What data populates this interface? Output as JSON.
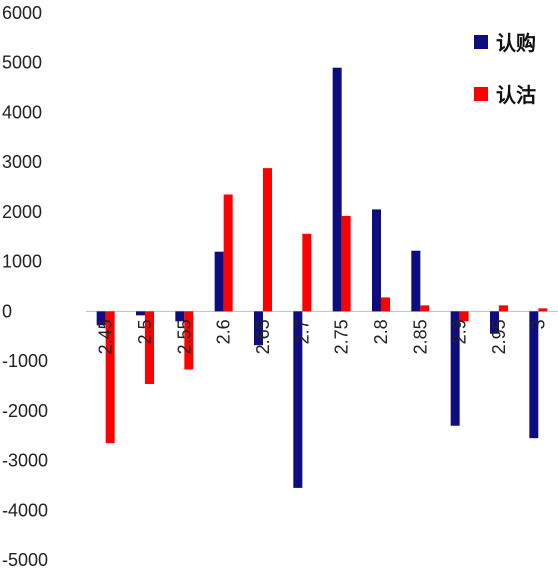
{
  "chart_data": {
    "type": "bar",
    "title": "",
    "xlabel": "",
    "ylabel": "",
    "ylim": [
      -5000,
      6000
    ],
    "yticks": [
      6000,
      5000,
      4000,
      3000,
      2000,
      1000,
      0,
      -1000,
      -2000,
      -3000,
      -4000,
      -5000
    ],
    "yticklabels": [
      "6000",
      "5000",
      "4000",
      "3000",
      "2000",
      "1000",
      "0",
      "-1000",
      "-2000",
      "-3000",
      "-4000",
      "-5000"
    ],
    "categories": [
      "2.45",
      "2.5",
      "2.55",
      "2.6",
      "2.65",
      "2.7",
      "2.75",
      "2.8",
      "2.85",
      "2.9",
      "2.95",
      "3"
    ],
    "series": [
      {
        "name": "认购",
        "color": "#0d0d80",
        "values": [
          -280,
          -80,
          -200,
          1200,
          -680,
          -3550,
          4900,
          2050,
          1220,
          -2300,
          -450,
          -2550
        ]
      },
      {
        "name": "认沽",
        "color": "#ff0000",
        "values": [
          -2650,
          -1460,
          -1170,
          2350,
          2880,
          1560,
          1920,
          280,
          120,
          -200,
          120,
          60
        ]
      }
    ],
    "legend_position": "top-right",
    "grid": false
  }
}
